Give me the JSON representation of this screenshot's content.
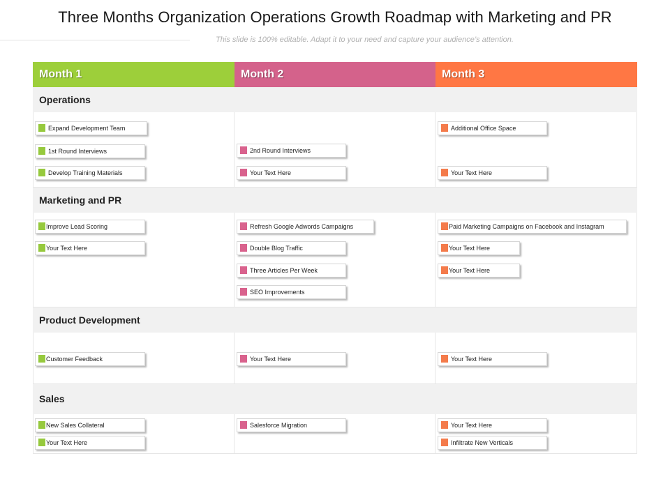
{
  "title": "Three Months Organization Operations Growth Roadmap with Marketing and PR",
  "subtitle": "This slide is 100% editable. Adapt it to your need and capture your audience’s attention.",
  "columns": [
    {
      "label": "Month 1",
      "color": "#9dcf3a"
    },
    {
      "label": "Month 2",
      "color": "#d4628b"
    },
    {
      "label": "Month 3",
      "color": "#ff7744"
    }
  ],
  "sections": {
    "operations": {
      "label": "Operations",
      "m1": [
        "Expand Development Team",
        "1st Round Interviews",
        "Develop Training Materials"
      ],
      "m2": [
        "2nd Round Interviews",
        "Your Text Here"
      ],
      "m3": [
        "Additional Office Space",
        "Your Text Here"
      ]
    },
    "marketing": {
      "label": "Marketing and PR",
      "m1": [
        "Improve Lead Scoring",
        "Your Text Here"
      ],
      "m2": [
        "Refresh Google Adwords Campaigns",
        "Double Blog Traffic",
        "Three Articles Per Week",
        "SEO Improvements"
      ],
      "m3": [
        "Paid Marketing Campaigns on Facebook and Instagram",
        "Your Text Here",
        "Your Text Here"
      ]
    },
    "product": {
      "label": "Product Development",
      "m1": [
        "Customer Feedback"
      ],
      "m2": [
        "Your Text Here"
      ],
      "m3": [
        "Your Text Here"
      ]
    },
    "sales": {
      "label": "Sales",
      "m1": [
        "New Sales Collateral",
        "Your Text Here"
      ],
      "m2": [
        "Salesforce Migration"
      ],
      "m3": [
        "Your Text Here",
        "Infiltrate New Verticals"
      ]
    }
  }
}
